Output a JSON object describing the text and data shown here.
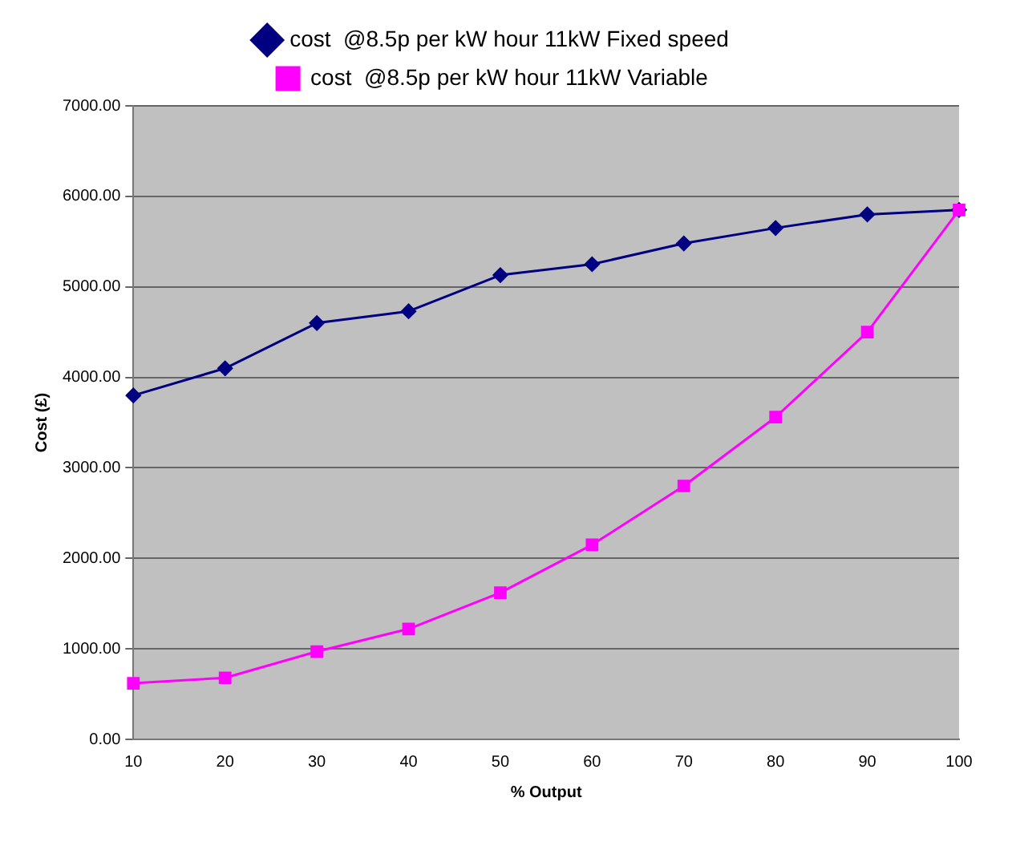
{
  "chart_data": {
    "type": "line",
    "xlabel": "% Output",
    "ylabel": "Cost (£)",
    "categories": [
      "10",
      "20",
      "30",
      "40",
      "50",
      "60",
      "70",
      "80",
      "90",
      "100"
    ],
    "series": [
      {
        "name": "cost  @8.5p per kW hour 11kW Fixed speed",
        "color": "#000080",
        "marker": "diamond",
        "values": [
          3800,
          4100,
          4600,
          4730,
          5130,
          5250,
          5480,
          5650,
          5800,
          5850
        ]
      },
      {
        "name": "cost  @8.5p per kW hour 11kW Variable",
        "color": "#ff00ff",
        "marker": "square",
        "values": [
          620,
          680,
          970,
          1220,
          1620,
          2150,
          2800,
          3560,
          4500,
          5850
        ]
      }
    ],
    "ylim": [
      0,
      7000
    ],
    "yticks": [
      {
        "value": 0,
        "label": "0.00"
      },
      {
        "value": 1000,
        "label": "1000.00"
      },
      {
        "value": 2000,
        "label": "2000.00"
      },
      {
        "value": 3000,
        "label": "3000.00"
      },
      {
        "value": 4000,
        "label": "4000.00"
      },
      {
        "value": 5000,
        "label": "5000.00"
      },
      {
        "value": 6000,
        "label": "6000.00"
      },
      {
        "value": 7000,
        "label": "7000.00"
      }
    ],
    "grid": "y",
    "legend": "top",
    "line_style": "solid"
  }
}
